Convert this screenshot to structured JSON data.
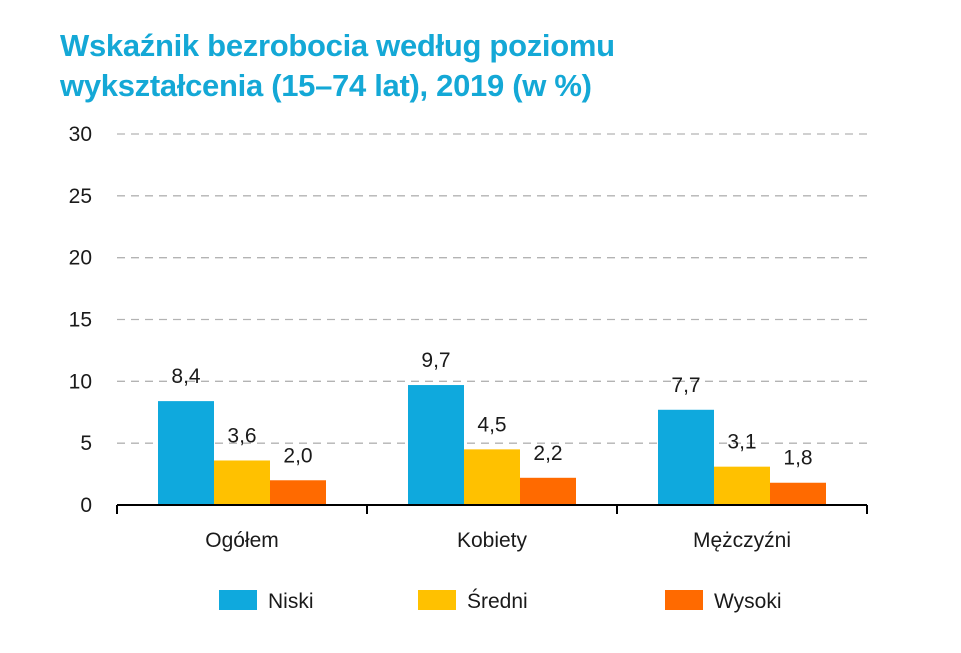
{
  "title_line1": "Wskaźnik bezrobocia według poziomu",
  "title_line2": "wykształcenia (15–74 lat), 2019 (w %)",
  "chart_data": {
    "type": "bar",
    "title": "Wskaźnik bezrobocia według poziomu wykształcenia (15–74 lat), 2019 (w %)",
    "categories": [
      "Ogółem",
      "Kobiety",
      "Mężczyźni"
    ],
    "series": [
      {
        "name": "Niski",
        "color": "#0fa9dd",
        "values": [
          8.4,
          9.7,
          7.7
        ],
        "labels": [
          "8,4",
          "9,7",
          "7,7"
        ]
      },
      {
        "name": "Średni",
        "color": "#ffc100",
        "values": [
          3.6,
          4.5,
          3.1
        ],
        "labels": [
          "3,6",
          "4,5",
          "3,1"
        ]
      },
      {
        "name": "Wysoki",
        "color": "#ff6a00",
        "values": [
          2.0,
          2.2,
          1.8
        ],
        "labels": [
          "2,0",
          "2,2",
          "1,8"
        ]
      }
    ],
    "ylim": [
      0,
      30
    ],
    "yticks": [
      0,
      5,
      10,
      15,
      20,
      25,
      30
    ],
    "grid": true,
    "legend_position": "bottom",
    "xlabel": "",
    "ylabel": ""
  }
}
